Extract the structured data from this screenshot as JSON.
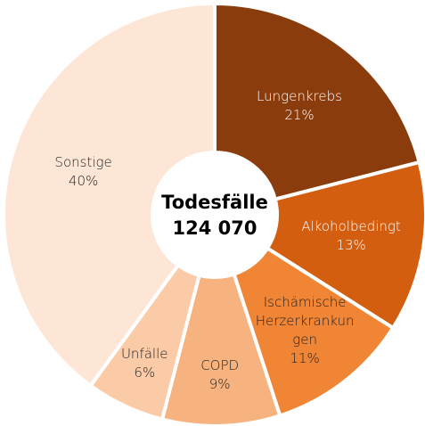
{
  "chart_data": {
    "type": "donut",
    "center_title": "Todesfälle",
    "center_value": "124 070",
    "categories": [
      "Lungenkrebs",
      "Alkoholbedingt",
      "Ischämische Herzerkrankungen",
      "COPD",
      "Unfälle",
      "Sonstige"
    ],
    "values": [
      21,
      13,
      11,
      9,
      6,
      40
    ],
    "value_labels": [
      "21%",
      "13%",
      "11%",
      "9%",
      "6%",
      "40%"
    ],
    "colors": [
      "#8b3c0c",
      "#d45e10",
      "#f08536",
      "#f7b37f",
      "#fbcaa6",
      "#fde6d5"
    ]
  }
}
